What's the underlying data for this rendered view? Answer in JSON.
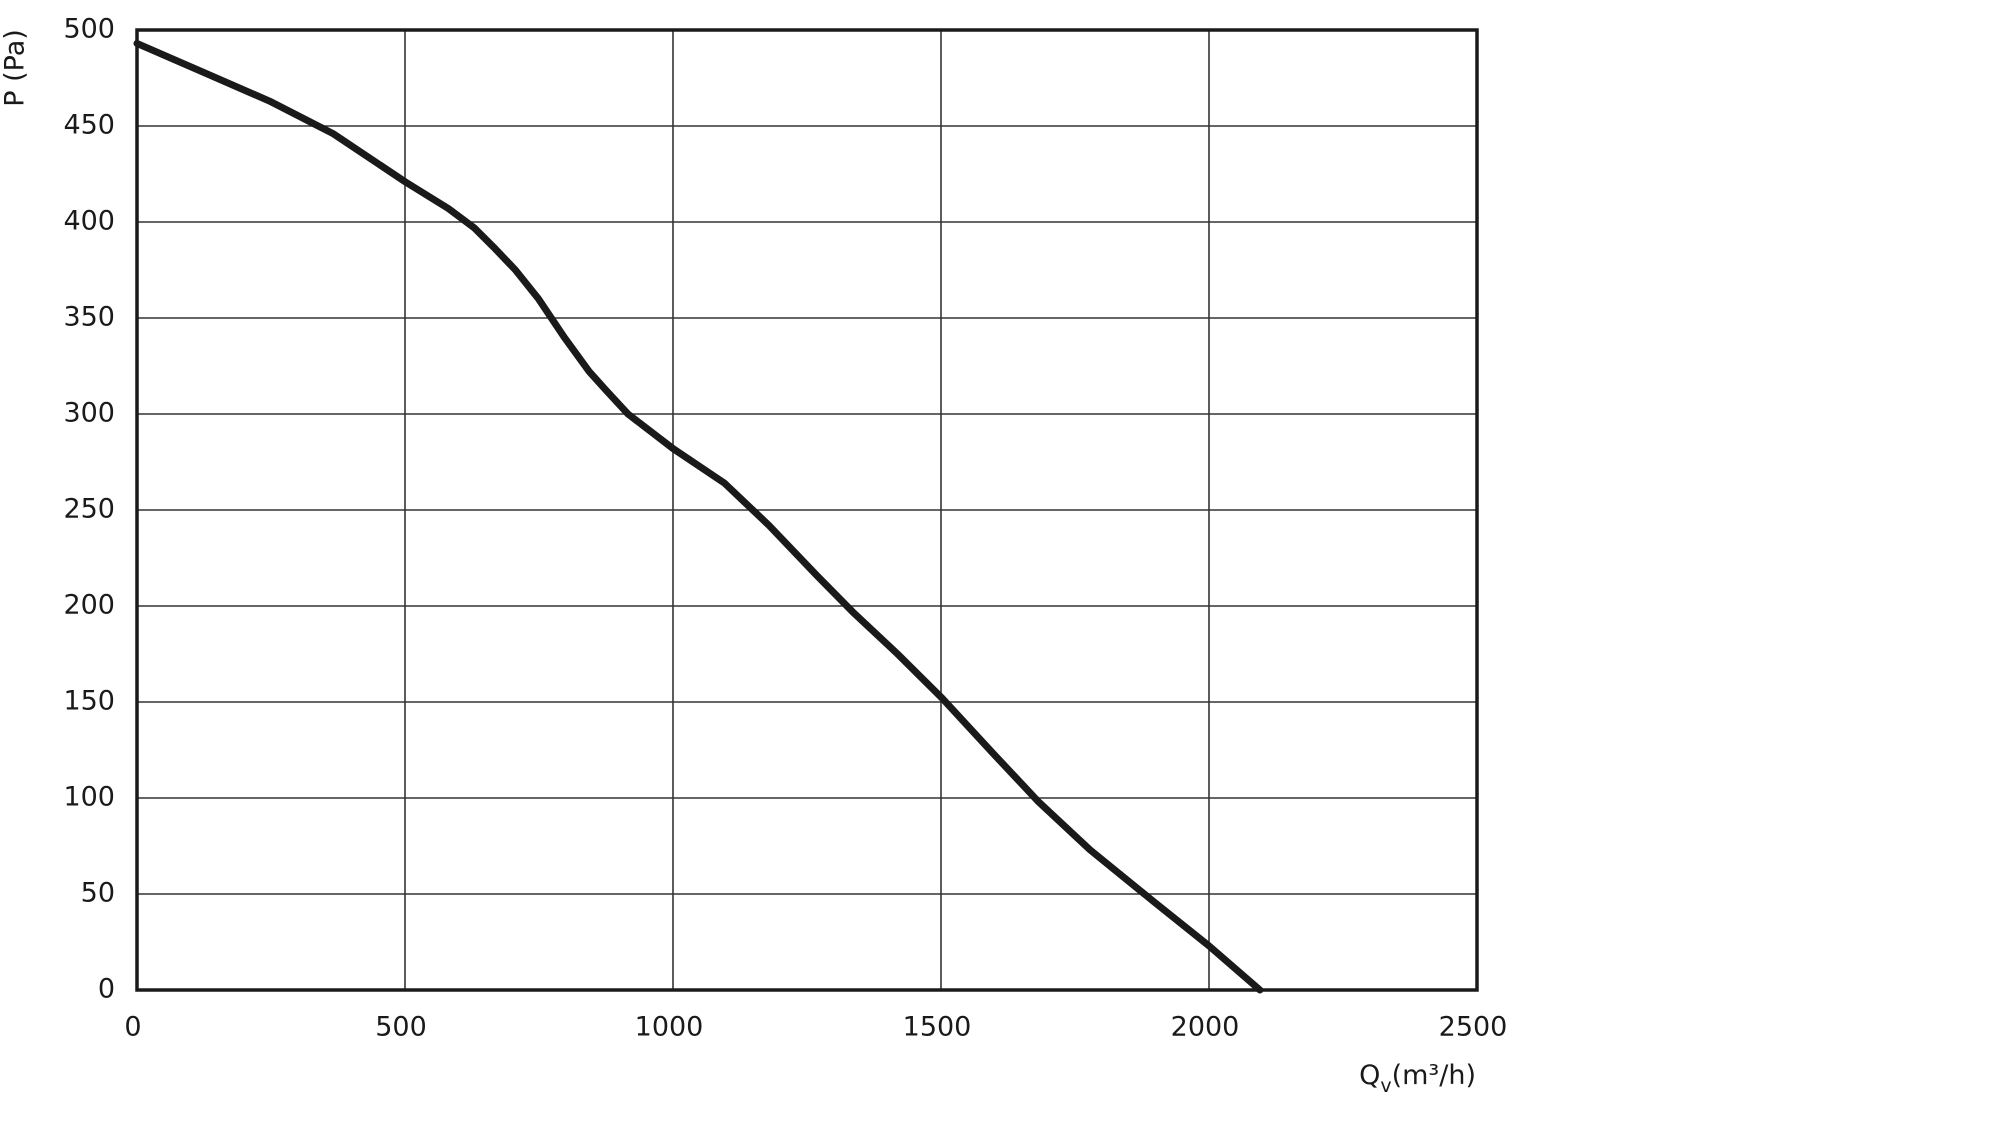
{
  "chart_data": {
    "type": "line",
    "y_label": "P (Pa)",
    "x_label": "Q",
    "x_label_sub": "v",
    "x_unit": "(m³/h)",
    "x": [
      0,
      132,
      247,
      366,
      500,
      581,
      629,
      665,
      706,
      749,
      797,
      844,
      873,
      916,
      1000,
      1096,
      1179,
      1268,
      1335,
      1419,
      1502,
      1598,
      1682,
      1778,
      1897,
      2000,
      2095
    ],
    "series": [
      {
        "color": "#1a1a1a",
        "values": [
          493,
          477,
          463,
          446,
          421,
          407,
          397,
          387,
          375,
          360,
          340,
          322,
          313,
          300,
          282,
          264,
          242,
          216,
          197,
          175,
          152,
          123,
          98,
          73,
          46,
          23,
          0
        ]
      }
    ],
    "xlim": [
      0,
      2500
    ],
    "xticks": [
      0,
      500,
      1000,
      1500,
      2000,
      2500
    ],
    "ylim": [
      0,
      500
    ],
    "yticks": [
      0,
      50,
      100,
      150,
      200,
      250,
      300,
      350,
      400,
      450,
      500
    ],
    "grid": true
  }
}
